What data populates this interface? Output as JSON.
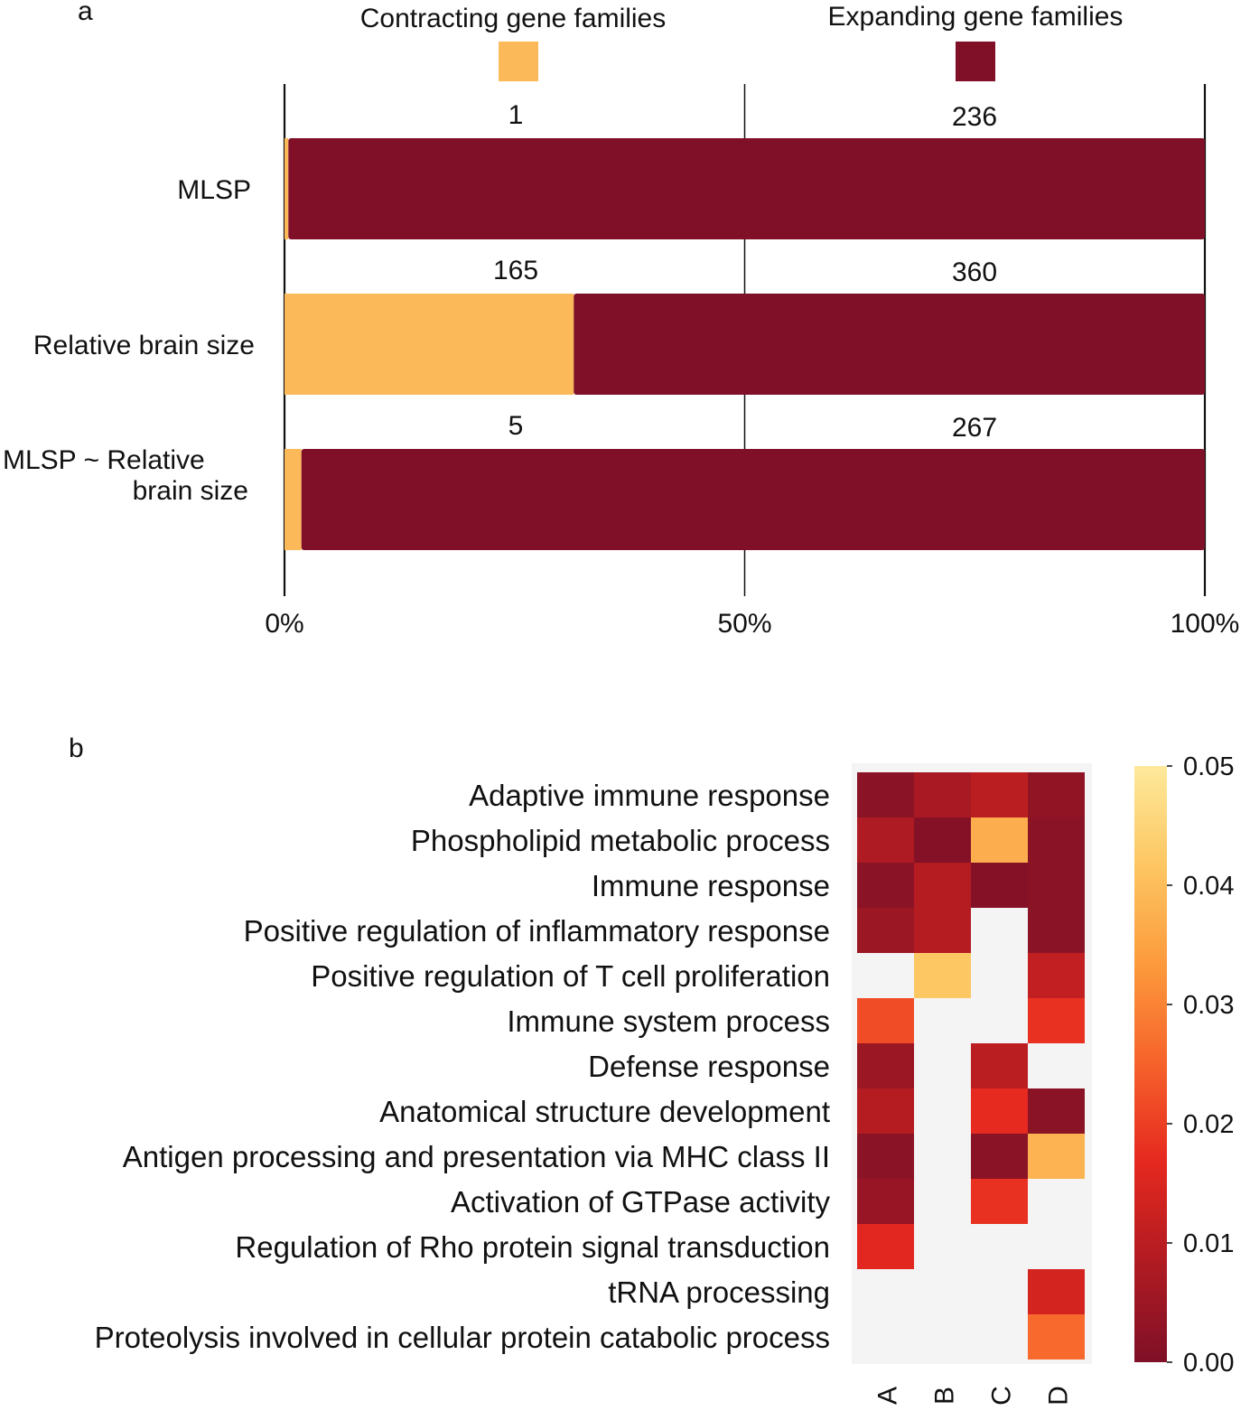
{
  "colors": {
    "contracting": "#fbb95a",
    "expanding": "#7f1027",
    "heatmap_missing": "#f4f4f4",
    "axis": "#111111",
    "colormap": [
      "#7f1027",
      "#b01b22",
      "#e5281f",
      "#f6622b",
      "#fc9a3c",
      "#fdc662",
      "#fde99b"
    ]
  },
  "chart_data": [
    {
      "type": "bar",
      "orientation": "horizontal",
      "stacked": true,
      "normalized": true,
      "panel_label": "a",
      "categories": [
        "MLSP",
        "Relative brain size",
        "MLSP ~ Relative brain size"
      ],
      "category_labels": [
        [
          "MLSP"
        ],
        [
          "Relative brain size"
        ],
        [
          "MLSP ~ Relative",
          "brain size"
        ]
      ],
      "series": [
        {
          "name": "Contracting gene families",
          "values": [
            1,
            165,
            5
          ]
        },
        {
          "name": "Expanding gene families",
          "values": [
            236,
            360,
            267
          ]
        }
      ],
      "xticks": [
        "0%",
        "50%",
        "100%"
      ],
      "xlim": [
        0,
        100
      ],
      "legend": "top",
      "grid": "vertical lines at 0%, 50%, 100%"
    },
    {
      "type": "heatmap",
      "panel_label": "b",
      "rows": [
        "Adaptive immune response",
        "Phospholipid metabolic process",
        "Immune response",
        "Positive regulation of inflammatory response",
        "Positive regulation of T cell proliferation",
        "Immune system process",
        "Defense response",
        "Anatomical structure development",
        "Antigen processing and presentation via MHC class II",
        "Activation of GTPase activity",
        "Regulation of Rho protein signal transduction",
        "tRNA processing",
        "Proteolysis involved in cellular protein catabolic process"
      ],
      "columns": [
        "A",
        "B",
        "C",
        "D"
      ],
      "values": [
        [
          0.002,
          0.007,
          0.01,
          0.003
        ],
        [
          0.008,
          0.001,
          0.037,
          0.002
        ],
        [
          0.002,
          0.009,
          0.001,
          0.002
        ],
        [
          0.005,
          0.009,
          null,
          0.002
        ],
        [
          null,
          0.042,
          null,
          0.011
        ],
        [
          0.022,
          null,
          null,
          0.018
        ],
        [
          0.005,
          null,
          0.01,
          null
        ],
        [
          0.009,
          null,
          0.017,
          0.002
        ],
        [
          0.002,
          null,
          0.002,
          0.038
        ],
        [
          0.004,
          null,
          0.018,
          null
        ],
        [
          0.016,
          null,
          null,
          null
        ],
        [
          null,
          null,
          null,
          0.014
        ],
        [
          null,
          null,
          null,
          0.026
        ]
      ],
      "colorbar": {
        "min": 0.0,
        "max": 0.05,
        "ticks": [
          "0.00",
          "0.01",
          "0.02",
          "0.03",
          "0.04",
          "0.05"
        ]
      }
    }
  ]
}
